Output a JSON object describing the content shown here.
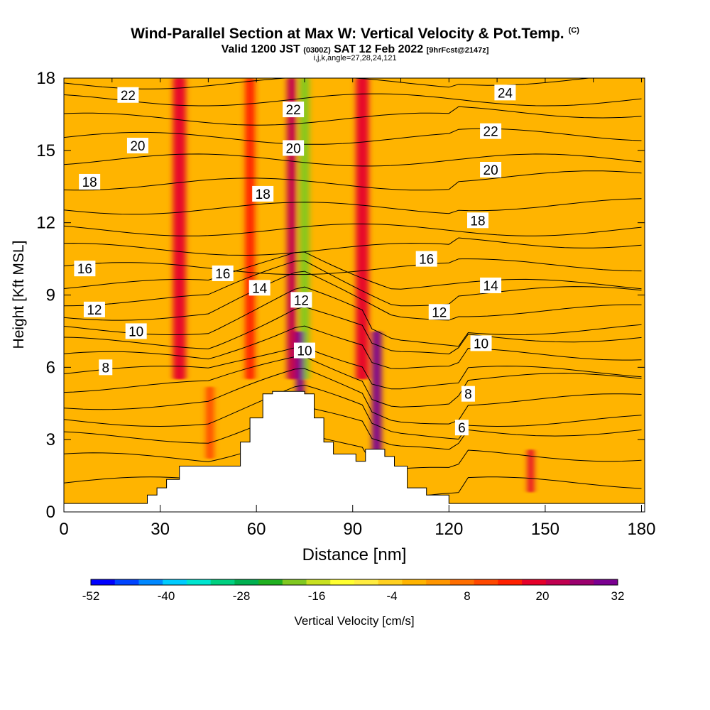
{
  "header": {
    "title": "Wind-Parallel Section at Max W: Vertical Velocity & Pot.Temp.",
    "copyright": "(C)",
    "valid_prefix": "Valid 1200 JST",
    "valid_zulu": "(0300Z)",
    "valid_date": "SAT 12 Feb 2022",
    "forecast": "[9hrFcst@2147z]",
    "indices": "i,j,k,angle=27,28,24,121"
  },
  "colorbar": {
    "label": "Vertical Velocity [cm/s]",
    "tick_labels": [
      "-52",
      "-40",
      "-28",
      "-16",
      "-4",
      "8",
      "20",
      "32"
    ],
    "colors": [
      "#0000ff",
      "#0044ff",
      "#0088ff",
      "#00ccff",
      "#00e5d0",
      "#00d080",
      "#00b050",
      "#20b020",
      "#80c820",
      "#c8e020",
      "#ffff30",
      "#ffec40",
      "#ffd020",
      "#ffb400",
      "#ff9600",
      "#ff6e00",
      "#ff4800",
      "#ff2000",
      "#e6002a",
      "#c00050",
      "#9b006e",
      "#7a0090"
    ]
  },
  "chart_data": {
    "type": "heatmap",
    "xlabel": "Distance [nm]",
    "ylabel": "Height [Kft MSL]",
    "xlim": [
      0,
      181
    ],
    "ylim": [
      0,
      18
    ],
    "x_ticks": [
      "0",
      "30",
      "60",
      "90",
      "120",
      "150",
      "180"
    ],
    "y_ticks": [
      "0",
      "3",
      "6",
      "9",
      "12",
      "15",
      "18"
    ],
    "shaded_field": "vertical velocity (cm/s)",
    "terrain_profile": [
      [
        0,
        0.35
      ],
      [
        26,
        0.35
      ],
      [
        26,
        0.7
      ],
      [
        29,
        0.7
      ],
      [
        29,
        1.0
      ],
      [
        32,
        1.0
      ],
      [
        32,
        1.35
      ],
      [
        36,
        1.35
      ],
      [
        36,
        1.9
      ],
      [
        55,
        1.9
      ],
      [
        55,
        2.9
      ],
      [
        58,
        2.9
      ],
      [
        58,
        3.9
      ],
      [
        62,
        3.9
      ],
      [
        62,
        4.9
      ],
      [
        65,
        4.9
      ],
      [
        65,
        5.0
      ],
      [
        75,
        5.0
      ],
      [
        75,
        4.9
      ],
      [
        78,
        4.9
      ],
      [
        78,
        3.9
      ],
      [
        81,
        3.9
      ],
      [
        81,
        2.9
      ],
      [
        84,
        2.9
      ],
      [
        84,
        2.4
      ],
      [
        91,
        2.4
      ],
      [
        91,
        2.1
      ],
      [
        94,
        2.1
      ],
      [
        94,
        2.6
      ],
      [
        100,
        2.6
      ],
      [
        100,
        2.3
      ],
      [
        103,
        2.3
      ],
      [
        103,
        1.9
      ],
      [
        107,
        1.9
      ],
      [
        107,
        1.0
      ],
      [
        113,
        1.0
      ],
      [
        113,
        0.7
      ],
      [
        120,
        0.7
      ],
      [
        120,
        0.35
      ],
      [
        181,
        0.35
      ]
    ],
    "wind_bands": [
      {
        "x": 36,
        "w": 4,
        "value": 18
      },
      {
        "x": 58,
        "w": 3,
        "value": 16
      },
      {
        "x": 71,
        "w": 3,
        "value": 22
      },
      {
        "x": 75,
        "w": 3,
        "value": -18
      },
      {
        "x": 93,
        "w": 4,
        "value": 18
      },
      {
        "x": 73.6,
        "w": 2.5,
        "value": 32
      },
      {
        "x": 97.5,
        "w": 3,
        "value": 30
      },
      {
        "x": 145.5,
        "w": 2,
        "value": 20
      },
      {
        "x": 45.5,
        "w": 2.5,
        "value": 10
      }
    ],
    "contour_labels": [
      {
        "text": "22",
        "x": 20,
        "y": 17.3
      },
      {
        "text": "20",
        "x": 23,
        "y": 15.2
      },
      {
        "text": "18",
        "x": 8,
        "y": 13.7
      },
      {
        "text": "16",
        "x": 6.5,
        "y": 10.1
      },
      {
        "text": "12",
        "x": 9.5,
        "y": 8.4
      },
      {
        "text": "10",
        "x": 22.5,
        "y": 7.5
      },
      {
        "text": "8",
        "x": 13,
        "y": 6.0
      },
      {
        "text": "22",
        "x": 71.5,
        "y": 16.7
      },
      {
        "text": "20",
        "x": 71.5,
        "y": 15.1
      },
      {
        "text": "18",
        "x": 62,
        "y": 13.2
      },
      {
        "text": "16",
        "x": 49.5,
        "y": 9.9
      },
      {
        "text": "14",
        "x": 61,
        "y": 9.3
      },
      {
        "text": "12",
        "x": 74,
        "y": 8.8
      },
      {
        "text": "10",
        "x": 75,
        "y": 6.7
      },
      {
        "text": "24",
        "x": 137.5,
        "y": 17.4
      },
      {
        "text": "22",
        "x": 133,
        "y": 15.8
      },
      {
        "text": "20",
        "x": 133,
        "y": 14.2
      },
      {
        "text": "18",
        "x": 129,
        "y": 12.1
      },
      {
        "text": "16",
        "x": 113,
        "y": 10.5
      },
      {
        "text": "14",
        "x": 133,
        "y": 9.4
      },
      {
        "text": "12",
        "x": 117,
        "y": 8.3
      },
      {
        "text": "10",
        "x": 130,
        "y": 7.0
      },
      {
        "text": "8",
        "x": 126,
        "y": 4.9
      },
      {
        "text": "6",
        "x": 124,
        "y": 3.5
      }
    ]
  }
}
